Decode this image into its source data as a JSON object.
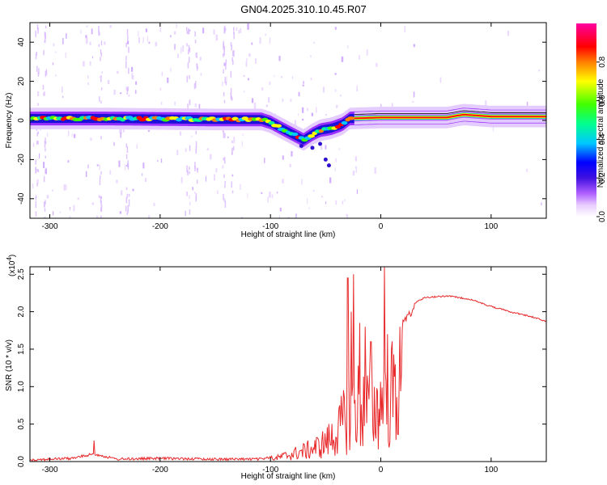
{
  "figure": {
    "title": "GN04.2025.310.10.45.R07"
  },
  "chart_data": [
    {
      "type": "heatmap",
      "xlabel": "Height of straight line (km)",
      "ylabel": "Frequency (Hz)",
      "xlim": [
        -318,
        150
      ],
      "ylim": [
        -50,
        50
      ],
      "x_ticks": [
        -300,
        -200,
        -100,
        0,
        100
      ],
      "x_tick_labels": [
        "-300",
        "-200",
        "-100",
        "0",
        "100"
      ],
      "y_ticks": [
        -40,
        -20,
        0,
        20,
        40
      ],
      "y_tick_labels": [
        "-40",
        "-20",
        "0",
        "20",
        "40"
      ],
      "colorbar": {
        "label": "Normalized spectral amplitude",
        "range": [
          0,
          1
        ],
        "ticks": [
          0.0,
          0.2,
          0.4,
          0.6,
          0.8
        ],
        "tick_labels": [
          "0.0",
          "0.2",
          "0.4",
          "0.6",
          "0.8"
        ],
        "colormap": [
          "#ffffff",
          "#e8ccff",
          "#a040ff",
          "#3010d0",
          "#0000ff",
          "#00c8ff",
          "#00ff80",
          "#40ff00",
          "#ffff00",
          "#ff8000",
          "#ff0000",
          "#ff00a0"
        ]
      },
      "ridge": [
        {
          "x": -318,
          "y": 1
        },
        {
          "x": -250,
          "y": 1
        },
        {
          "x": -150,
          "y": 0.5
        },
        {
          "x": -108,
          "y": 0.5
        },
        {
          "x": -100,
          "y": -1
        },
        {
          "x": -90,
          "y": -4
        },
        {
          "x": -80,
          "y": -7
        },
        {
          "x": -70,
          "y": -10
        },
        {
          "x": -62,
          "y": -7
        },
        {
          "x": -55,
          "y": -5
        },
        {
          "x": -45,
          "y": -4
        },
        {
          "x": -35,
          "y": -2
        },
        {
          "x": -28,
          "y": 1
        },
        {
          "x": 0,
          "y": 1.5
        },
        {
          "x": 60,
          "y": 1.5
        },
        {
          "x": 75,
          "y": 3
        },
        {
          "x": 100,
          "y": 2
        },
        {
          "x": 150,
          "y": 2
        }
      ],
      "grid": false
    },
    {
      "type": "line",
      "xlabel": "Height of straight line (km)",
      "ylabel": "SNR (10 * v/v)",
      "y_multiplier_label": "(x10",
      "y_multiplier_exponent": "4",
      "y_multiplier_close": ")",
      "xlim": [
        -318,
        150
      ],
      "ylim": [
        0,
        2.6
      ],
      "x_ticks": [
        -300,
        -200,
        -100,
        0,
        100
      ],
      "x_tick_labels": [
        "-300",
        "-200",
        "-100",
        "0",
        "100"
      ],
      "y_ticks": [
        0.0,
        0.5,
        1.0,
        1.5,
        2.0,
        2.5
      ],
      "y_tick_labels": [
        "0.0",
        "0.5",
        "1.0",
        "1.5",
        "2.0",
        "2.5"
      ],
      "series": [
        {
          "color": "#e8282a",
          "envelope": [
            {
              "x": -318,
              "y": 0.04
            },
            {
              "x": -280,
              "y": 0.06
            },
            {
              "x": -260,
              "y": 0.12
            },
            {
              "x": -240,
              "y": 0.05
            },
            {
              "x": -200,
              "y": 0.06
            },
            {
              "x": -150,
              "y": 0.05
            },
            {
              "x": -110,
              "y": 0.05
            },
            {
              "x": -95,
              "y": 0.08
            },
            {
              "x": -80,
              "y": 0.18
            },
            {
              "x": -65,
              "y": 0.28
            },
            {
              "x": -55,
              "y": 0.38
            },
            {
              "x": -45,
              "y": 0.55
            },
            {
              "x": -38,
              "y": 0.75
            },
            {
              "x": -32,
              "y": 1.05
            },
            {
              "x": -25,
              "y": 1.25
            },
            {
              "x": -20,
              "y": 1.35
            },
            {
              "x": -15,
              "y": 1.3
            },
            {
              "x": -10,
              "y": 1.25
            },
            {
              "x": -5,
              "y": 1.25
            },
            {
              "x": 0,
              "y": 1.35
            },
            {
              "x": 5,
              "y": 1.45
            },
            {
              "x": 10,
              "y": 1.6
            },
            {
              "x": 20,
              "y": 1.9
            },
            {
              "x": 30,
              "y": 2.12
            },
            {
              "x": 40,
              "y": 2.2
            },
            {
              "x": 60,
              "y": 2.22
            },
            {
              "x": 80,
              "y": 2.18
            },
            {
              "x": 100,
              "y": 2.08
            },
            {
              "x": 120,
              "y": 2.0
            },
            {
              "x": 135,
              "y": 1.95
            },
            {
              "x": 150,
              "y": 1.88
            }
          ],
          "spikes": [
            {
              "x": -260,
              "y": 0.28
            },
            {
              "x": -30,
              "y": 2.45
            },
            {
              "x": -27,
              "y": 2.0
            },
            {
              "x": -25,
              "y": 2.5
            },
            {
              "x": -19,
              "y": 1.85
            },
            {
              "x": -14,
              "y": 1.8
            },
            {
              "x": -9,
              "y": 1.6
            },
            {
              "x": 3,
              "y": 2.6
            },
            {
              "x": 6,
              "y": 1.7
            }
          ]
        }
      ],
      "grid": false
    }
  ]
}
